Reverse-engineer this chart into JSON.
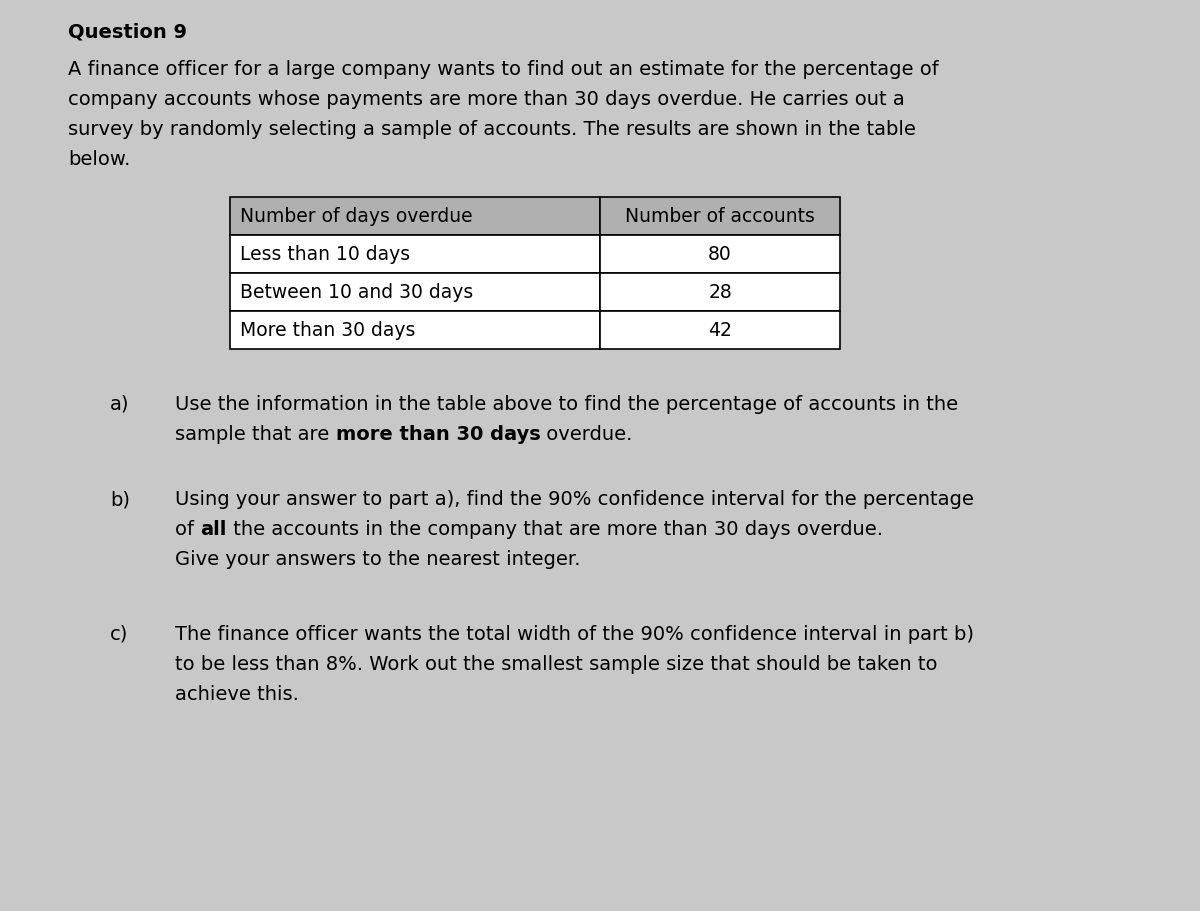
{
  "bg_color": "#c8c8c8",
  "table_header_bg": "#b0b0b0",
  "title": "Question 9",
  "intro_lines": [
    "A finance officer for a large company wants to find out an estimate for the percentage of",
    "company accounts whose payments are more than 30 days overdue. He carries out a",
    "survey by randomly selecting a sample of accounts. The results are shown in the table",
    "below."
  ],
  "table_headers": [
    "Number of days overdue",
    "Number of accounts"
  ],
  "table_rows": [
    [
      "Less than 10 days",
      "80"
    ],
    [
      "Between 10 and 30 days",
      "28"
    ],
    [
      "More than 30 days",
      "42"
    ]
  ],
  "part_a_label": "a)",
  "part_a_line1": "Use the information in the table above to find the percentage of accounts in the",
  "part_a_line2_pre": "sample that are ",
  "part_a_line2_bold": "more than 30 days",
  "part_a_line2_post": " overdue.",
  "part_b_label": "b)",
  "part_b_line1": "Using your answer to part a), find the 90% confidence interval for the percentage",
  "part_b_line2_pre": "of ",
  "part_b_line2_bold": "all",
  "part_b_line2_post": " the accounts in the company that are more than 30 days overdue.",
  "part_b_line3": "Give your answers to the nearest integer.",
  "part_c_label": "c)",
  "part_c_line1": "The finance officer wants the total width of the 90% confidence interval in part b)",
  "part_c_line2": "to be less than 8%. Work out the smallest sample size that should be taken to",
  "part_c_line3": "achieve this.",
  "font_size_title": 14,
  "font_size_body": 14,
  "font_size_table": 13.5,
  "font_family": "DejaVu Sans"
}
